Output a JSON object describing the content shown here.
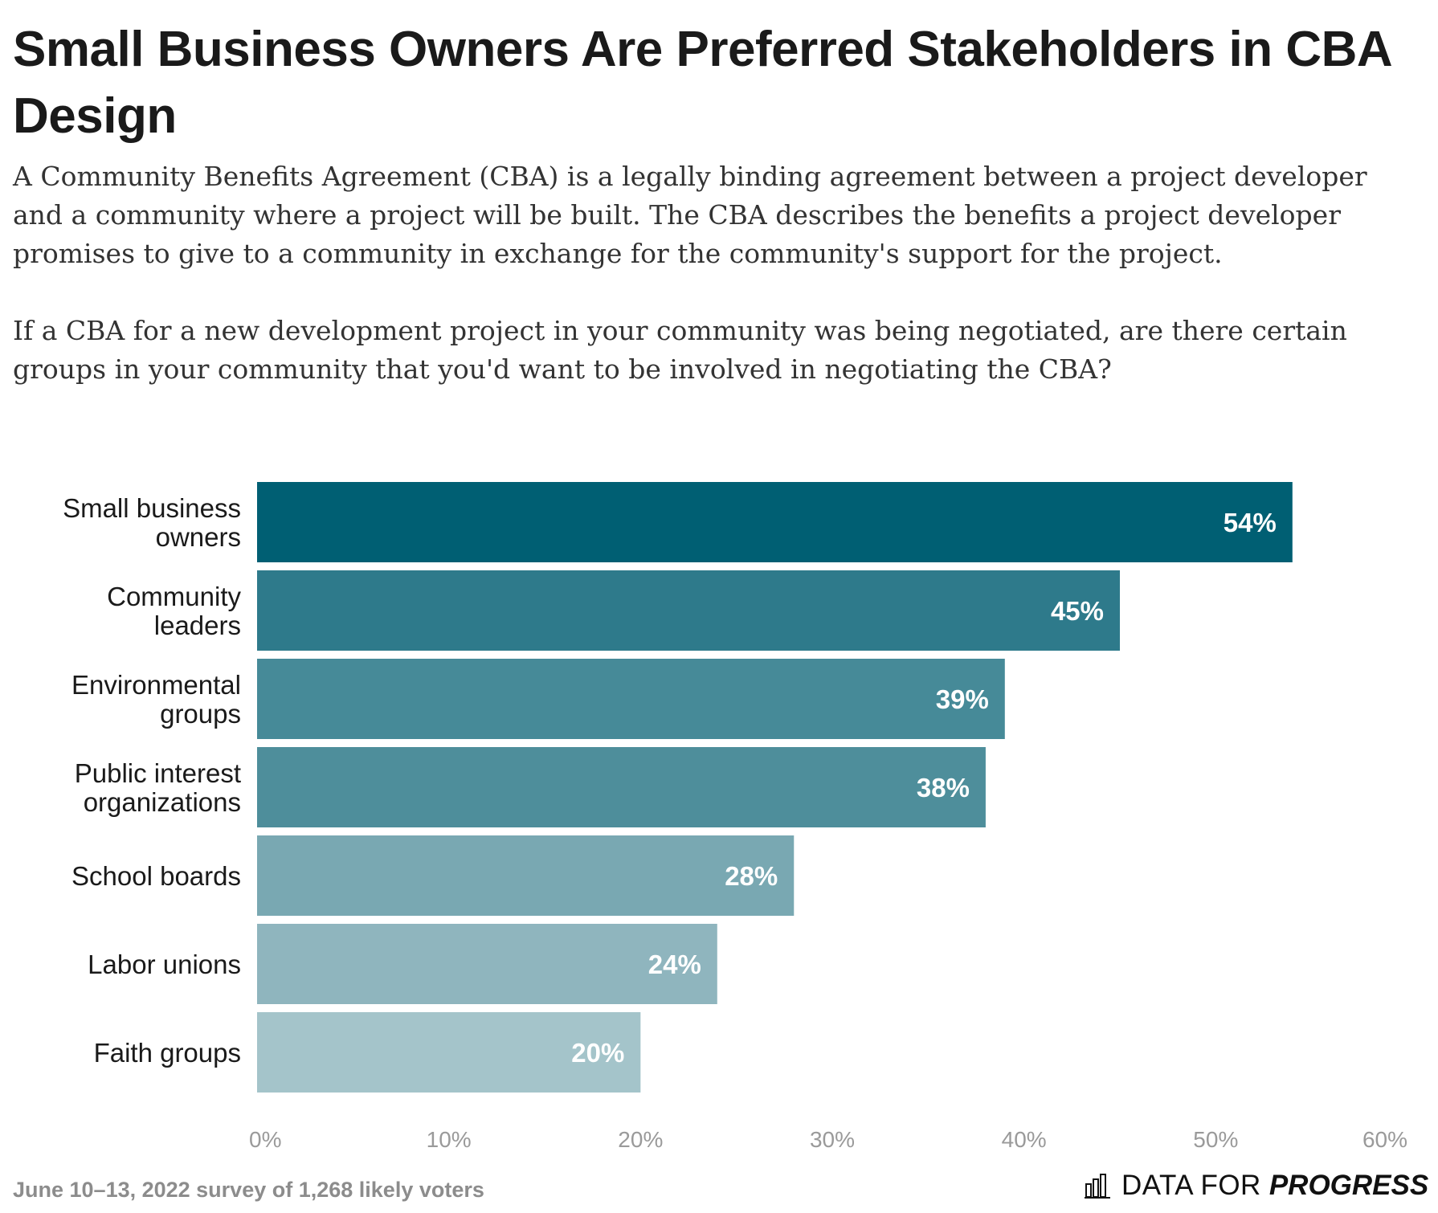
{
  "header": {
    "title": "Small Business Owners Are Preferred Stakeholders in CBA Design",
    "description": "A Community Benefits Agreement (CBA) is a legally binding agreement between a project developer and a community where a project will be built. The CBA describes the benefits a project developer promises to give to a community in exchange for the community's support for the project.",
    "question": "If a CBA for a new development project in your community was being negotiated, are there certain groups in your community that you'd want to be involved in negotiating the CBA?"
  },
  "chart_data": {
    "type": "bar",
    "orientation": "horizontal",
    "title": "Small Business Owners Are Preferred Stakeholders in CBA Design",
    "categories": [
      [
        "Small business",
        "owners"
      ],
      [
        "Community",
        "leaders"
      ],
      [
        "Environmental",
        "groups"
      ],
      [
        "Public interest",
        "organizations"
      ],
      [
        "School boards"
      ],
      [
        "Labor unions"
      ],
      [
        "Faith groups"
      ]
    ],
    "values": [
      54,
      45,
      39,
      38,
      28,
      24,
      20
    ],
    "value_labels": [
      "54%",
      "45%",
      "39%",
      "38%",
      "28%",
      "24%",
      "20%"
    ],
    "colors": [
      "#005f73",
      "#2e7a8b",
      "#468a98",
      "#4e8e9b",
      "#79a8b2",
      "#8fb5be",
      "#a4c4ca"
    ],
    "xlim": [
      0,
      60
    ],
    "xticks": [
      0,
      10,
      20,
      30,
      40,
      50,
      60
    ],
    "xtick_labels": [
      "0%",
      "10%",
      "20%",
      "30%",
      "40%",
      "50%",
      "60%"
    ],
    "xlabel": "",
    "ylabel": "",
    "grid": false
  },
  "footer": {
    "source": "June 10–13, 2022 survey of 1,268 likely voters",
    "brand_part1": "DATA FOR",
    "brand_part2": "PROGRESS",
    "brand_icon": "bar-chart-icon"
  }
}
